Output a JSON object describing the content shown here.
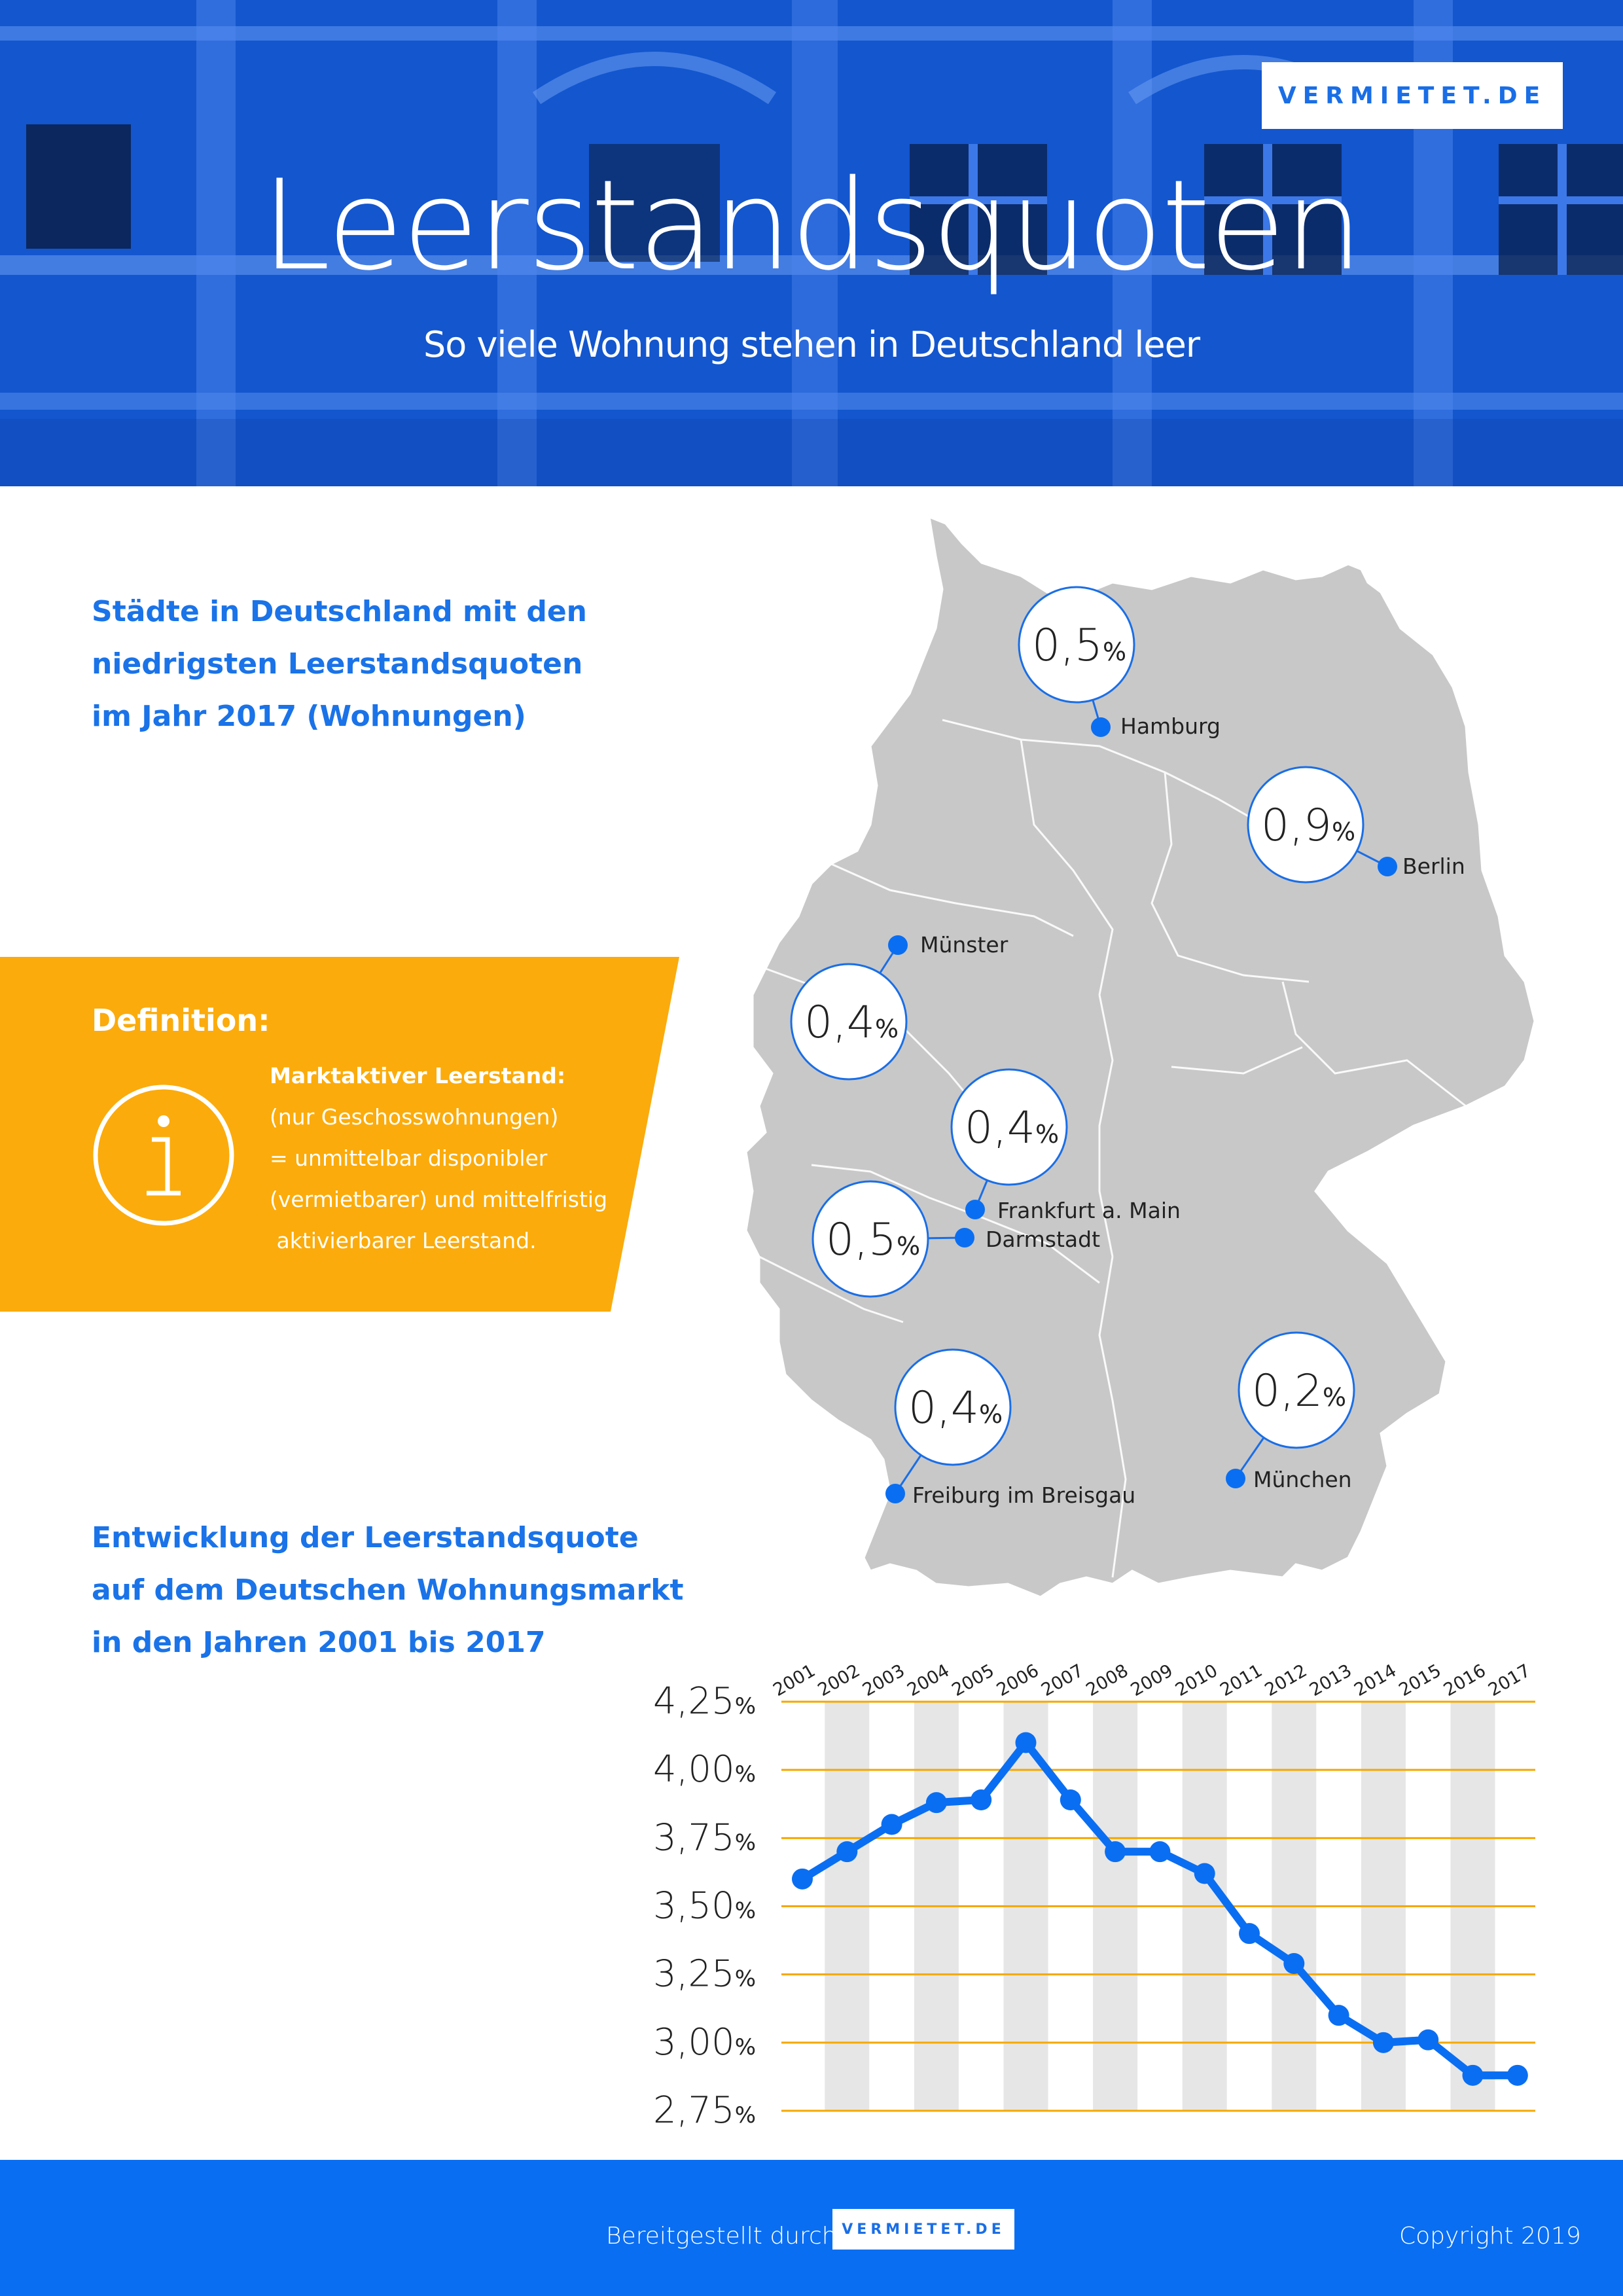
{
  "header": {
    "brand": "VERMIETET.DE",
    "title": "Leerstandsquoten",
    "subtitle": "So viele Wohnung stehen in Deutschland leer"
  },
  "map_section": {
    "heading_lines": [
      "Städte in Deutschland mit den",
      "niedrigsten Leerstandsquoten",
      "im Jahr 2017 (Wohnungen)"
    ],
    "percent_symbol": "%",
    "cities": [
      {
        "name": "Hamburg",
        "value": "0,5"
      },
      {
        "name": "Berlin",
        "value": "0,9"
      },
      {
        "name": "Münster",
        "value": "0,4"
      },
      {
        "name": "Frankfurt a. Main",
        "value": "0,4"
      },
      {
        "name": "Darmstadt",
        "value": "0,5"
      },
      {
        "name": "Freiburg im Breisgau",
        "value": "0,4"
      },
      {
        "name": "München",
        "value": "0,2"
      }
    ]
  },
  "definition": {
    "title": "Definition:",
    "term": "Marktaktiver Leerstand:",
    "lines": [
      "(nur Geschosswohnungen)",
      "= unmittelbar disponibler",
      "(vermietbarer) und mittelfristig",
      " aktivierbarer Leerstand."
    ]
  },
  "trend_section": {
    "heading_lines": [
      "Entwicklung der Leerstandsquote",
      "auf dem Deutschen Wohnungsmarkt",
      "in den Jahren 2001 bis 2017"
    ]
  },
  "chart_data": [
    {
      "type": "bar",
      "categories": [
        "Hamburg",
        "Berlin",
        "Münster",
        "Frankfurt a. Main",
        "Darmstadt",
        "Freiburg im Breisgau",
        "München"
      ],
      "values": [
        0.5,
        0.9,
        0.4,
        0.4,
        0.5,
        0.4,
        0.2
      ],
      "unit": "%"
    },
    {
      "type": "line",
      "x": [
        "2001",
        "2002",
        "2003",
        "2004",
        "2005",
        "2006",
        "2007",
        "2008",
        "2009",
        "2010",
        "2011",
        "2012",
        "2013",
        "2014",
        "2015",
        "2016",
        "2017"
      ],
      "y": [
        3.6,
        3.7,
        3.8,
        3.88,
        3.89,
        4.1,
        3.89,
        3.7,
        3.7,
        3.62,
        3.4,
        3.29,
        3.1,
        3.0,
        3.01,
        2.88,
        2.88
      ],
      "ytick_labels": [
        "4,25",
        "4,00",
        "3,75",
        "3,50",
        "3,25",
        "3,00",
        "2,75"
      ],
      "yticks": [
        4.25,
        4.0,
        3.75,
        3.5,
        3.25,
        3.0,
        2.75
      ],
      "ylim": [
        2.75,
        4.25
      ],
      "unit": "%",
      "line_color": "#0a6ef2",
      "grid_color": "#f5a800",
      "band_color": "#e6e6e6",
      "grid": true
    }
  ],
  "footer": {
    "credit": "Bereitgestellt durch",
    "brand": "VERMIETET.DE",
    "copyright": "Copyright 2019"
  },
  "colors": {
    "primary_blue": "#1a73e8",
    "footer_blue": "#0a6ef2",
    "definition_orange": "#fbab0b",
    "map_gray": "#c8c8c8"
  }
}
